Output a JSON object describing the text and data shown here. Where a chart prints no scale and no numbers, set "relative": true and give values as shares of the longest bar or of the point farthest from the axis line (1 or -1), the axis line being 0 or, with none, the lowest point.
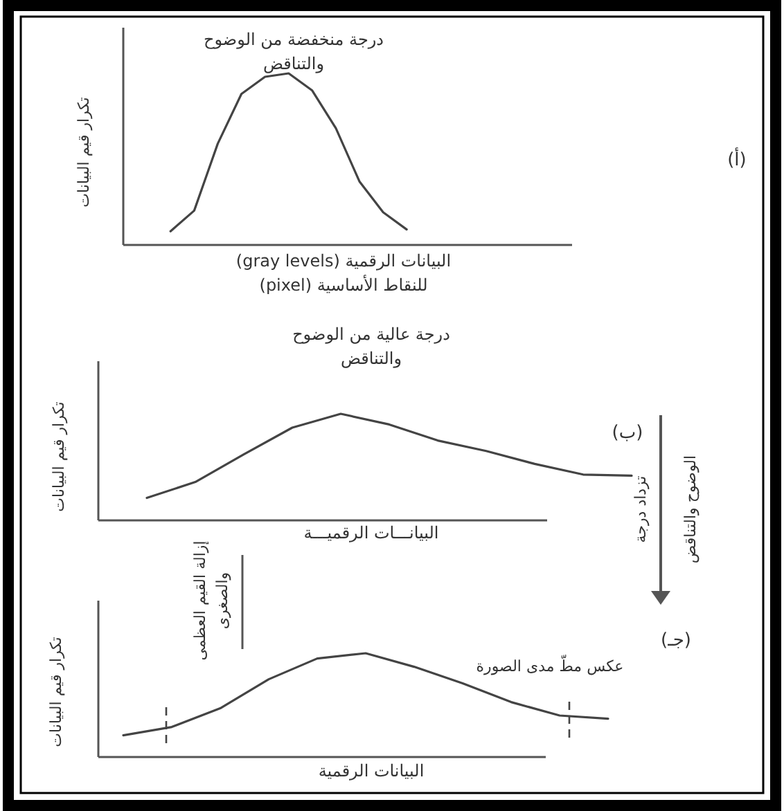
{
  "chart_data": [
    {
      "type": "line",
      "title": "درجة منخفضة من الوضوح\nوالتناقض",
      "xlabel": "البيانات الرقمية (gray levels)\nللنقاط الأساسية (pixel)",
      "ylabel": "تكرار قيم البيانات",
      "annotations": [
        "(أ)"
      ],
      "relative": true,
      "categories": [
        null,
        null,
        null,
        null,
        null,
        null,
        null,
        null,
        null,
        null,
        null,
        null,
        null,
        null,
        null,
        null,
        null,
        null,
        null,
        null
      ],
      "series": [
        {
          "color": "#444444",
          "values": [
            null,
            null,
            0.08,
            0.2,
            0.59,
            0.88,
            0.98,
            1.0,
            0.9,
            0.68,
            0.37,
            0.19,
            0.09,
            null,
            null,
            null,
            null,
            null,
            null,
            null
          ]
        }
      ]
    },
    {
      "type": "line",
      "title": "درجة عالية من الوضوح\nوالتناقض",
      "xlabel": "البيانـــات الرقميـــة",
      "ylabel": "تكرار قيم البيانات",
      "annotations": [
        "(ب)",
        "تزداد درجة\nالوضوح والتناقض"
      ],
      "relative": true,
      "categories": [
        null,
        null,
        null,
        null,
        null,
        null,
        null,
        null,
        null,
        null,
        null,
        null
      ],
      "series": [
        {
          "color": "#444444",
          "values": [
            null,
            0.21,
            0.36,
            0.62,
            0.87,
            1.0,
            0.9,
            0.75,
            0.65,
            0.53,
            0.43,
            0.42
          ]
        }
      ]
    },
    {
      "type": "line",
      "xlabel": "البيانات الرقمية",
      "ylabel": "تكرار قيم البيانات",
      "annotations": [
        "(جـ)",
        "عكس مطّ مدى الصورة",
        "إزالة القيم العظمى\nوالصغرى"
      ],
      "relative": true,
      "categories": [
        null,
        null,
        null,
        null,
        null,
        null,
        null,
        null,
        null,
        null,
        null
      ],
      "series": [
        {
          "color": "#444444",
          "values": [
            0.21,
            0.29,
            0.47,
            0.75,
            0.95,
            1.0,
            0.87,
            0.71,
            0.53,
            0.4,
            0.37
          ]
        }
      ]
    }
  ]
}
